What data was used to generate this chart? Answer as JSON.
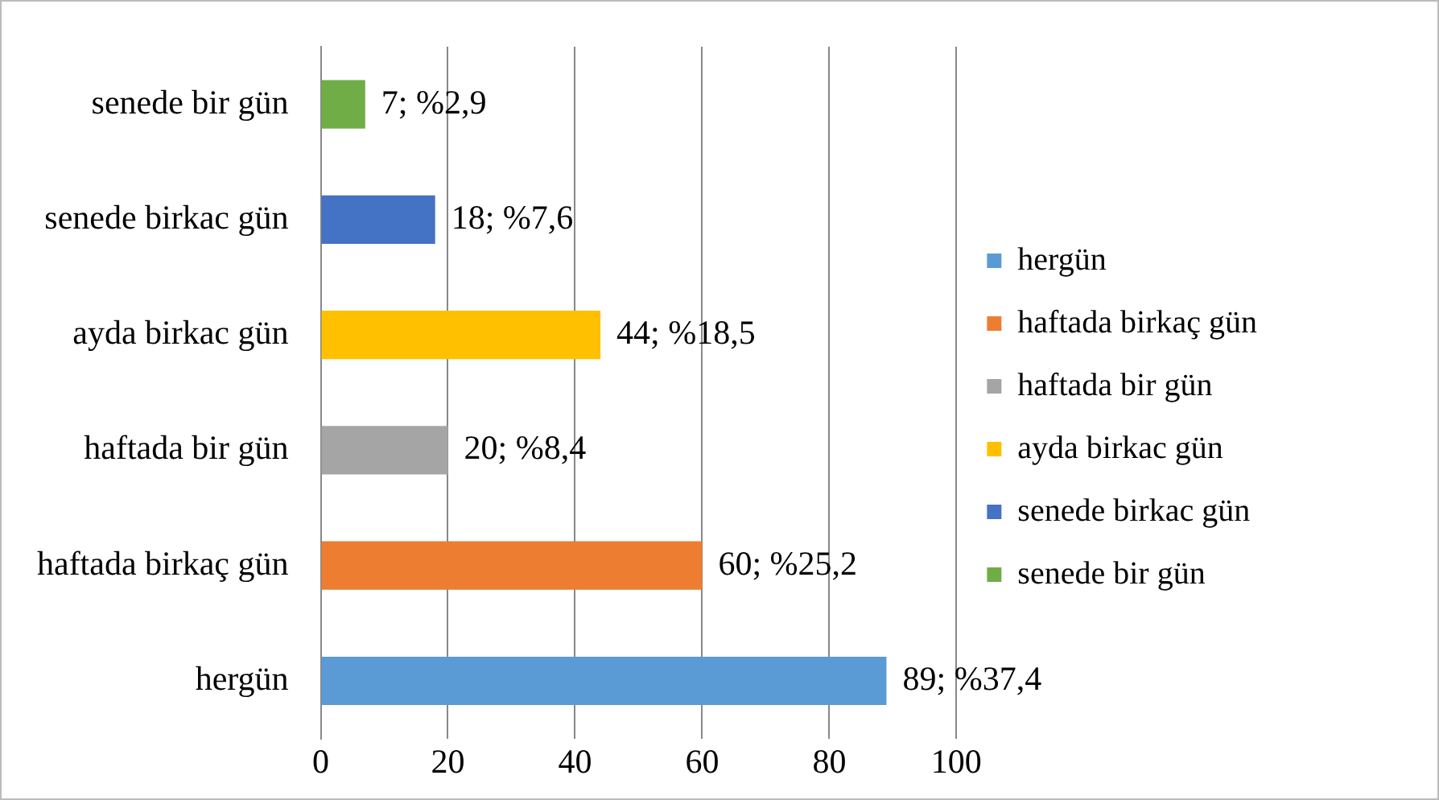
{
  "chart_data": {
    "type": "bar",
    "orientation": "horizontal",
    "categories": [
      "senede bir gün",
      "senede birkac gün",
      "ayda birkac gün",
      "haftada bir gün",
      "haftada birkaç gün",
      "hergün"
    ],
    "series": [
      {
        "name": "hergün",
        "color": "#5b9bd5",
        "values": [
          null,
          null,
          null,
          null,
          null,
          89
        ],
        "value_labels": [
          null,
          null,
          null,
          null,
          null,
          "89; %37,4"
        ]
      },
      {
        "name": "haftada birkaç gün",
        "color": "#ed7d31",
        "values": [
          null,
          null,
          null,
          null,
          60,
          null
        ],
        "value_labels": [
          null,
          null,
          null,
          null,
          "60; %25,2",
          null
        ]
      },
      {
        "name": "haftada bir gün",
        "color": "#a5a5a5",
        "values": [
          null,
          null,
          null,
          20,
          null,
          null
        ],
        "value_labels": [
          null,
          null,
          null,
          "20; %8,4",
          null,
          null
        ]
      },
      {
        "name": "ayda birkac gün",
        "color": "#ffc000",
        "values": [
          null,
          null,
          44,
          null,
          null,
          null
        ],
        "value_labels": [
          null,
          null,
          "44; %18,5",
          null,
          null,
          null
        ]
      },
      {
        "name": "senede birkac gün",
        "color": "#4472c4",
        "values": [
          null,
          18,
          null,
          null,
          null,
          null
        ],
        "value_labels": [
          null,
          "18; %7,6",
          null,
          null,
          null,
          null
        ]
      },
      {
        "name": "senede bir gün",
        "color": "#70ad47",
        "values": [
          7,
          null,
          null,
          null,
          null,
          null
        ],
        "value_labels": [
          "7; %2,9",
          null,
          null,
          null,
          null,
          null
        ]
      }
    ],
    "xlim": [
      0,
      100
    ],
    "xticks": [
      0,
      20,
      40,
      60,
      80,
      100
    ],
    "grid": "x",
    "legend": "right"
  }
}
